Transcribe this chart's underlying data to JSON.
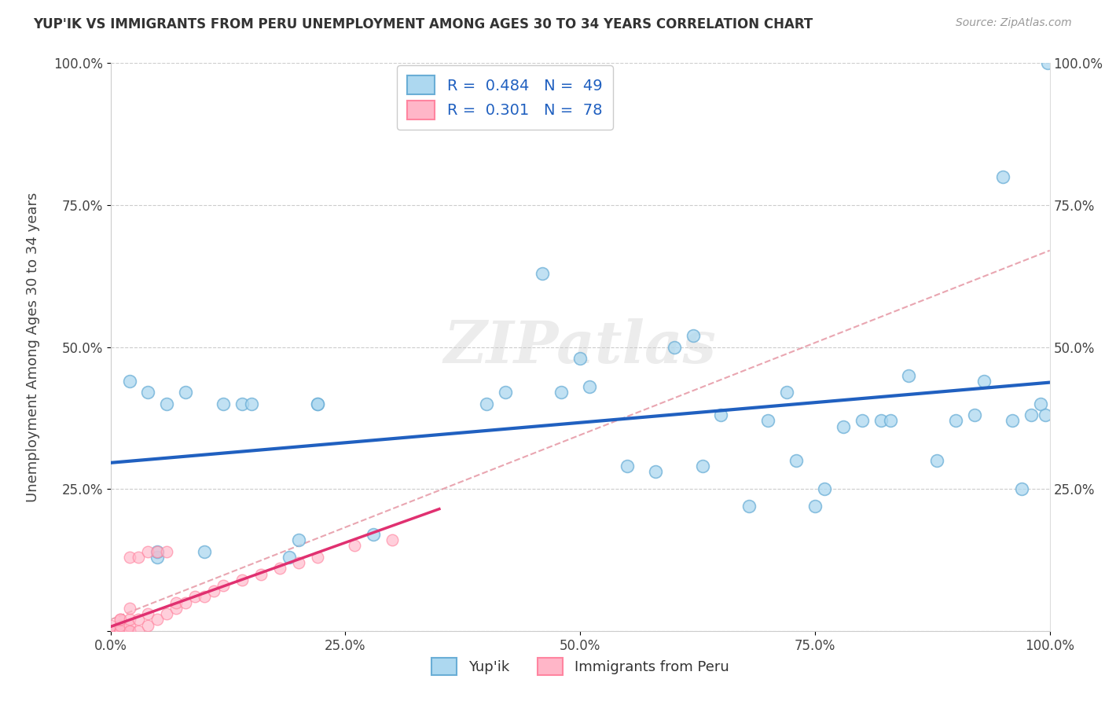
{
  "title": "YUP'IK VS IMMIGRANTS FROM PERU UNEMPLOYMENT AMONG AGES 30 TO 34 YEARS CORRELATION CHART",
  "source": "Source: ZipAtlas.com",
  "ylabel": "Unemployment Among Ages 30 to 34 years",
  "xlabel": "",
  "legend_label1": "Yup'ik",
  "legend_label2": "Immigrants from Peru",
  "R1": 0.484,
  "N1": 49,
  "R2": 0.301,
  "N2": 78,
  "color1": "#ADD8F0",
  "color2": "#FFB6C8",
  "edge_color1": "#6AAED6",
  "edge_color2": "#FF85A0",
  "line_color1": "#2060C0",
  "line_color2": "#E03070",
  "dash_color": "#E08090",
  "xlim": [
    0.0,
    1.0
  ],
  "ylim": [
    0.0,
    1.0
  ],
  "xticks": [
    0.0,
    0.25,
    0.5,
    0.75,
    1.0
  ],
  "yticks": [
    0.0,
    0.25,
    0.5,
    0.75,
    1.0
  ],
  "xtick_labels": [
    "0.0%",
    "25.0%",
    "50.0%",
    "75.0%",
    "100.0%"
  ],
  "ytick_labels": [
    "",
    "25.0%",
    "50.0%",
    "75.0%",
    "100.0%"
  ],
  "watermark": "ZIPatlas",
  "yupik_x": [
    0.02,
    0.04,
    0.05,
    0.05,
    0.06,
    0.08,
    0.1,
    0.12,
    0.14,
    0.15,
    0.19,
    0.2,
    0.22,
    0.22,
    0.28,
    0.4,
    0.42,
    0.46,
    0.48,
    0.5,
    0.51,
    0.55,
    0.58,
    0.6,
    0.62,
    0.63,
    0.65,
    0.68,
    0.7,
    0.72,
    0.73,
    0.75,
    0.76,
    0.78,
    0.8,
    0.82,
    0.83,
    0.85,
    0.88,
    0.9,
    0.92,
    0.93,
    0.95,
    0.96,
    0.97,
    0.98,
    0.99,
    0.995,
    0.998
  ],
  "yupik_y": [
    0.44,
    0.42,
    0.13,
    0.14,
    0.4,
    0.42,
    0.14,
    0.4,
    0.4,
    0.4,
    0.13,
    0.16,
    0.4,
    0.4,
    0.17,
    0.4,
    0.42,
    0.63,
    0.42,
    0.48,
    0.43,
    0.29,
    0.28,
    0.5,
    0.52,
    0.29,
    0.38,
    0.22,
    0.37,
    0.42,
    0.3,
    0.22,
    0.25,
    0.36,
    0.37,
    0.37,
    0.37,
    0.45,
    0.3,
    0.37,
    0.38,
    0.44,
    0.8,
    0.37,
    0.25,
    0.38,
    0.4,
    0.38,
    1.0
  ],
  "peru_x": [
    0.0,
    0.0,
    0.0,
    0.0,
    0.0,
    0.0,
    0.0,
    0.0,
    0.0,
    0.0,
    0.0,
    0.0,
    0.0,
    0.0,
    0.0,
    0.0,
    0.0,
    0.0,
    0.0,
    0.0,
    0.0,
    0.0,
    0.0,
    0.0,
    0.0,
    0.0,
    0.0,
    0.0,
    0.0,
    0.0,
    0.0,
    0.0,
    0.0,
    0.0,
    0.0,
    0.0,
    0.0,
    0.0,
    0.0,
    0.0,
    0.0,
    0.01,
    0.01,
    0.01,
    0.01,
    0.01,
    0.01,
    0.01,
    0.02,
    0.02,
    0.02,
    0.02,
    0.02,
    0.02,
    0.03,
    0.03,
    0.03,
    0.04,
    0.04,
    0.04,
    0.05,
    0.05,
    0.06,
    0.06,
    0.07,
    0.07,
    0.08,
    0.09,
    0.1,
    0.11,
    0.12,
    0.14,
    0.16,
    0.18,
    0.2,
    0.22,
    0.26,
    0.3
  ],
  "peru_y": [
    0.0,
    0.0,
    0.0,
    0.0,
    0.0,
    0.0,
    0.0,
    0.0,
    0.0,
    0.0,
    0.0,
    0.0,
    0.0,
    0.0,
    0.0,
    0.0,
    0.0,
    0.0,
    0.0,
    0.0,
    0.0,
    0.0,
    0.0,
    0.0,
    0.0,
    0.0,
    0.0,
    0.0,
    0.0,
    0.0,
    0.0,
    0.0,
    0.0,
    0.0,
    0.0,
    0.0,
    0.0,
    0.0,
    0.0,
    0.0,
    0.01,
    0.0,
    0.0,
    0.0,
    0.0,
    0.01,
    0.02,
    0.02,
    0.0,
    0.01,
    0.0,
    0.02,
    0.04,
    0.13,
    0.0,
    0.02,
    0.13,
    0.01,
    0.03,
    0.14,
    0.02,
    0.14,
    0.03,
    0.14,
    0.04,
    0.05,
    0.05,
    0.06,
    0.06,
    0.07,
    0.08,
    0.09,
    0.1,
    0.11,
    0.12,
    0.13,
    0.15,
    0.16
  ]
}
